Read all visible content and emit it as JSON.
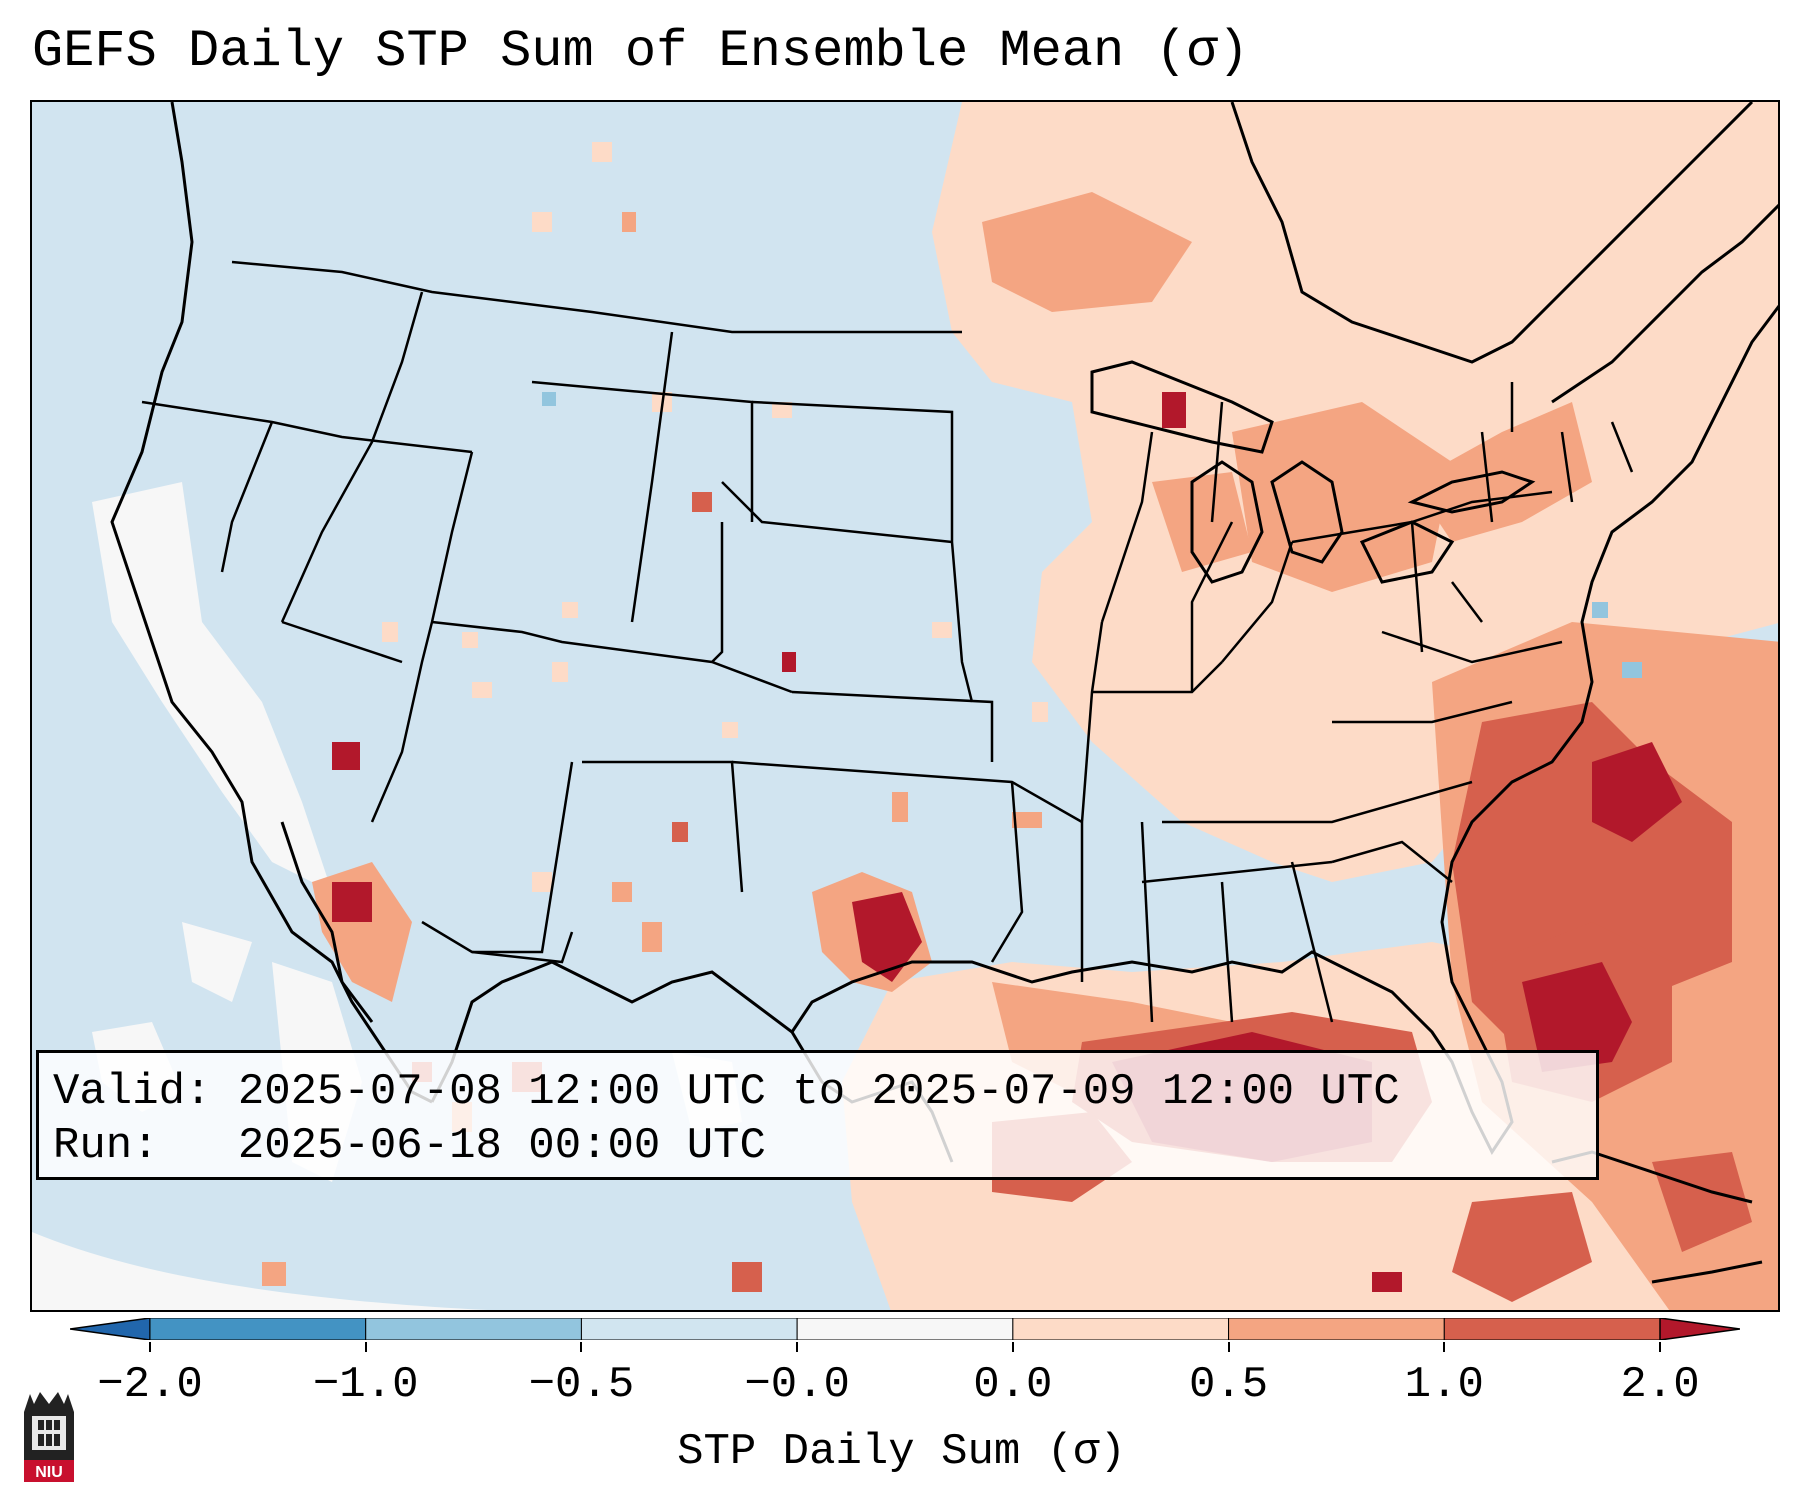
{
  "title": "GEFS Daily STP Sum of Ensemble Mean (σ)",
  "info": {
    "valid_label": "Valid:",
    "valid_value": "2025-07-08 12:00 UTC to 2025-07-09 12:00 UTC",
    "run_label": "Run:",
    "run_value": "2025-06-18 00:00 UTC"
  },
  "colorbar": {
    "label": "STP Daily Sum (σ)",
    "tick_labels": [
      "−2.0",
      "−1.0",
      "−0.5",
      "−0.0",
      "0.0",
      "0.5",
      "1.0",
      "2.0"
    ],
    "bins": [
      {
        "range": "< -2.0",
        "color": "#2166ac"
      },
      {
        "range": "-2.0 to -1.0",
        "color": "#4393c3"
      },
      {
        "range": "-1.0 to -0.5",
        "color": "#92c5de"
      },
      {
        "range": "-0.5 to -0.0",
        "color": "#d1e5f0"
      },
      {
        "range": "-0.0 to 0.0",
        "color": "#f7f7f7"
      },
      {
        "range": "0.0 to 0.5",
        "color": "#fddbc7"
      },
      {
        "range": "0.5 to 1.0",
        "color": "#f4a582"
      },
      {
        "range": "1.0 to 2.0",
        "color": "#d6604d"
      },
      {
        "range": "> 2.0",
        "color": "#b2182b"
      }
    ]
  },
  "logo": {
    "text": "NIU",
    "name": "Northern Illinois University"
  },
  "colors": {
    "background_ocean": "#d1e4f0",
    "neutral": "#f7f7f7",
    "light_red": "#fddbc7",
    "mid_red": "#f4a582",
    "red": "#d6604d",
    "dark_red": "#b2182b",
    "light_blue": "#92c5de",
    "outline": "#000000"
  }
}
